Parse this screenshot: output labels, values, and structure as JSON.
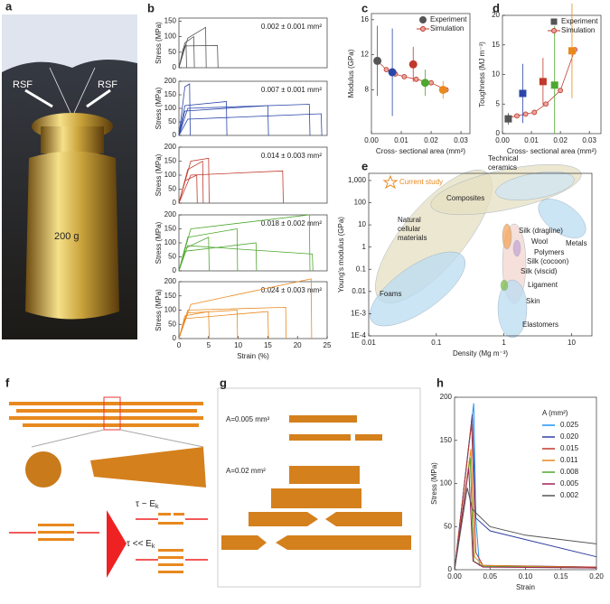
{
  "photo": {
    "panel": "a",
    "labels": [
      "RSF",
      "RSF"
    ],
    "weight": "200 g"
  },
  "diagram_f": {
    "panel": "f",
    "tau1": "τ ~ E",
    "tau1_sub": "k",
    "tau2": "τ << E",
    "tau2_sub": "k"
  },
  "diagram_g": {
    "panel": "g",
    "labels": [
      "A=0.005 mm²",
      "A=0.02 mm²"
    ]
  },
  "chart_data": [
    {
      "type": "line",
      "panel": "b",
      "annotation": "0.002 ± 0.001 mm²",
      "ylabel": "Stress (MPa)",
      "xlim": [
        0,
        25
      ],
      "ylim": [
        0,
        160
      ],
      "yticks": [
        0,
        50,
        100,
        150
      ],
      "series": [
        {
          "color": "#555555",
          "x": [
            0,
            1.5,
            4.5,
            4.6
          ],
          "values": [
            0,
            95,
            130,
            0
          ]
        },
        {
          "color": "#555555",
          "x": [
            0,
            1,
            2.5,
            2.6
          ],
          "values": [
            0,
            80,
            100,
            0
          ]
        },
        {
          "color": "#555555",
          "x": [
            0,
            1,
            6.5,
            6.6
          ],
          "values": [
            0,
            70,
            72,
            0
          ]
        },
        {
          "color": "#555555",
          "x": [
            0,
            0.7,
            1.2,
            1.3
          ],
          "values": [
            0,
            60,
            75,
            0
          ]
        }
      ]
    },
    {
      "type": "line",
      "annotation": "0.007 ± 0.001 mm²",
      "ylabel": "Stress (MPa)",
      "xlim": [
        0,
        25
      ],
      "ylim": [
        0,
        200
      ],
      "yticks": [
        0,
        50,
        100,
        150,
        200
      ],
      "series": [
        {
          "color": "#2a46a8",
          "x": [
            0,
            1,
            1.8,
            1.9
          ],
          "values": [
            0,
            180,
            190,
            0
          ]
        },
        {
          "color": "#2a46a8",
          "x": [
            0,
            1.5,
            22,
            22.1
          ],
          "values": [
            0,
            100,
            115,
            0
          ]
        },
        {
          "color": "#2a46a8",
          "x": [
            0,
            1,
            15,
            15.1
          ],
          "values": [
            0,
            90,
            110,
            0
          ]
        },
        {
          "color": "#2a46a8",
          "x": [
            0,
            1.5,
            24,
            24.1
          ],
          "values": [
            0,
            60,
            80,
            0
          ]
        },
        {
          "color": "#2a46a8",
          "x": [
            0,
            1,
            8,
            8.1
          ],
          "values": [
            0,
            110,
            125,
            0
          ]
        }
      ]
    },
    {
      "type": "line",
      "annotation": "0.014 ± 0.003 mm²",
      "ylabel": "Stress (MPa)",
      "xlim": [
        0,
        25
      ],
      "ylim": [
        0,
        200
      ],
      "yticks": [
        0,
        50,
        100,
        150,
        200
      ],
      "series": [
        {
          "color": "#c0392b",
          "x": [
            0,
            2,
            5,
            5.1
          ],
          "values": [
            0,
            150,
            160,
            0
          ]
        },
        {
          "color": "#c0392b",
          "x": [
            0,
            2,
            17.5,
            17.6
          ],
          "values": [
            0,
            100,
            115,
            0
          ]
        },
        {
          "color": "#c0392b",
          "x": [
            0,
            1.5,
            4,
            4.1
          ],
          "values": [
            0,
            120,
            150,
            0
          ]
        },
        {
          "color": "#c0392b",
          "x": [
            0,
            1,
            3,
            3.1
          ],
          "values": [
            0,
            80,
            100,
            0
          ]
        }
      ]
    },
    {
      "type": "line",
      "annotation": "0.018 ± 0.002 mm²",
      "ylabel": "Stress (MPa)",
      "xlim": [
        0,
        25
      ],
      "ylim": [
        0,
        200
      ],
      "yticks": [
        0,
        50,
        100,
        150,
        200
      ],
      "series": [
        {
          "color": "#4ea72e",
          "x": [
            0,
            2,
            22,
            22.1
          ],
          "values": [
            0,
            150,
            200,
            0
          ]
        },
        {
          "color": "#4ea72e",
          "x": [
            0,
            1.5,
            9.8,
            9.9
          ],
          "values": [
            0,
            120,
            150,
            0
          ]
        },
        {
          "color": "#4ea72e",
          "x": [
            0,
            1.5,
            22.5,
            22.6
          ],
          "values": [
            0,
            90,
            60,
            0
          ]
        },
        {
          "color": "#4ea72e",
          "x": [
            0,
            1,
            5,
            5.1
          ],
          "values": [
            0,
            80,
            120,
            0
          ]
        },
        {
          "color": "#4ea72e",
          "x": [
            0,
            1,
            13,
            13.1
          ],
          "values": [
            0,
            70,
            100,
            0
          ]
        }
      ]
    },
    {
      "type": "line",
      "annotation": "0.024 ± 0.003 mm²",
      "ylabel": "Stress (MPa)",
      "xlabel": "Strain (%)",
      "xlim": [
        0,
        25
      ],
      "ylim": [
        0,
        200
      ],
      "yticks": [
        0,
        50,
        100,
        150,
        200
      ],
      "xticks": [
        0,
        5,
        10,
        15,
        20,
        25
      ],
      "series": [
        {
          "color": "#e8891e",
          "x": [
            0,
            2,
            22.3,
            22.4
          ],
          "values": [
            0,
            120,
            210,
            0
          ]
        },
        {
          "color": "#e8891e",
          "x": [
            0,
            1.5,
            18,
            18.1
          ],
          "values": [
            0,
            100,
            110,
            0
          ]
        },
        {
          "color": "#e8891e",
          "x": [
            0,
            1.5,
            9.8,
            9.9
          ],
          "values": [
            0,
            90,
            100,
            0
          ]
        },
        {
          "color": "#e8891e",
          "x": [
            0,
            1,
            5,
            5.1
          ],
          "values": [
            0,
            80,
            95,
            0
          ]
        },
        {
          "color": "#e8891e",
          "x": [
            0,
            1,
            15,
            15.1
          ],
          "values": [
            0,
            70,
            95,
            0
          ]
        }
      ]
    },
    {
      "type": "scatter",
      "panel": "c",
      "ylabel": "Modulus (GPa)",
      "xlabel": "Cross- sectional area (mm²)",
      "xlim": [
        0,
        0.033
      ],
      "ylim": [
        3,
        16.7
      ],
      "xticks": [
        {
          "value": 0,
          "label": "0.00"
        },
        0.01,
        0.02,
        0.03
      ],
      "yticks": [
        8,
        12,
        16
      ],
      "marker": "circle",
      "series": [
        {
          "name": "Experiment",
          "color": "#555555",
          "colors": [
            "#555555",
            "#2a46a8",
            "#c0392b",
            "#4ea72e",
            "#e8891e"
          ],
          "x": [
            0.002,
            0.007,
            0.014,
            0.018,
            0.024
          ],
          "values": [
            11.3,
            10,
            10.9,
            8.8,
            8
          ],
          "errors": [
            4,
            5,
            2,
            1.5,
            1
          ]
        },
        {
          "name": "Simulation",
          "color": "#c0392b",
          "x": [
            0.002,
            0.005,
            0.008,
            0.011,
            0.015,
            0.02,
            0.025
          ],
          "values": [
            11.3,
            10.3,
            9.8,
            9.5,
            9.2,
            8.8,
            8
          ]
        }
      ]
    },
    {
      "type": "scatter",
      "panel": "d",
      "ylabel": "Toughness (MJ m⁻³)",
      "xlabel": "Cross- sectional area (mm²)",
      "xlim": [
        0,
        0.034
      ],
      "ylim": [
        0,
        20
      ],
      "xticks": [
        {
          "value": 0,
          "label": "0.00"
        },
        0.01,
        0.02,
        0.03
      ],
      "yticks": [
        0,
        5,
        10,
        15,
        20
      ],
      "marker": "square",
      "series": [
        {
          "name": "Experiment",
          "color": "#555555",
          "colors": [
            "#555555",
            "#2a46a8",
            "#c0392b",
            "#4ea72e",
            "#e8891e"
          ],
          "x": [
            0.002,
            0.007,
            0.014,
            0.018,
            0.024
          ],
          "values": [
            2.5,
            6.8,
            8.8,
            8.2,
            14
          ],
          "errors": [
            1,
            5,
            4,
            10,
            8
          ]
        },
        {
          "name": "Simulation",
          "color": "#c0392b",
          "x": [
            0.002,
            0.005,
            0.008,
            0.011,
            0.015,
            0.02,
            0.025
          ],
          "values": [
            2.7,
            3,
            3.3,
            3.6,
            5,
            7.3,
            14.2
          ]
        }
      ]
    },
    {
      "type": "ashby",
      "panel": "e",
      "ylabel": "Young's modulus (GPa)",
      "xlabel": "Density (Mg m⁻³)",
      "xscale": "log",
      "yscale": "log",
      "xlim": [
        0.01,
        20
      ],
      "ylim": [
        0.0001,
        2100
      ],
      "xticks": [
        0.01,
        0.1,
        1,
        10
      ],
      "yticks": [
        {
          "value": 1000,
          "label": "1,000"
        },
        100,
        10,
        1,
        0.1,
        0.01,
        {
          "value": 0.001,
          "label": "1E-3"
        },
        {
          "value": 0.0001,
          "label": "1E-4"
        }
      ],
      "annotations": [
        {
          "lines": [
            "Current study"
          ]
        },
        {
          "lines": [
            "Technical",
            "ceramics"
          ]
        },
        {
          "lines": [
            "Composites"
          ]
        },
        {
          "lines": [
            "Natural",
            "cellular",
            "materials"
          ]
        },
        {
          "lines": [
            "Silk (dragline)"
          ]
        },
        {
          "lines": [
            "Wool"
          ]
        },
        {
          "lines": [
            "Polymers"
          ]
        },
        {
          "lines": [
            "Silk (cocoon)"
          ]
        },
        {
          "lines": [
            "Silk (viscid)"
          ]
        },
        {
          "lines": [
            "Metals"
          ]
        },
        {
          "lines": [
            "Foams"
          ]
        },
        {
          "lines": [
            "Ligament"
          ]
        },
        {
          "lines": [
            "Skin"
          ]
        },
        {
          "lines": [
            "Elastomers"
          ]
        }
      ]
    },
    {
      "type": "line",
      "panel": "h",
      "ylabel": "Stress (MPa)",
      "xlabel": "Strain",
      "legend_title": "A (mm²)",
      "xlim": [
        0,
        0.2
      ],
      "ylim": [
        0,
        200
      ],
      "yticks": [
        0,
        50,
        100,
        150,
        200
      ],
      "xticks": [
        {
          "value": 0,
          "label": "0.00"
        },
        0.05,
        {
          "value": 0.1,
          "label": "0.10"
        },
        0.15,
        {
          "value": 0.2,
          "label": "0.20"
        }
      ],
      "series": [
        {
          "name": "0.025",
          "color": "#2196f3",
          "x": [
            0,
            0.027,
            0.03,
            0.035,
            0.2
          ],
          "values": [
            0,
            193,
            60,
            5,
            3
          ]
        },
        {
          "name": "0.020",
          "color": "#3040a0",
          "x": [
            0,
            0.025,
            0.03,
            0.05,
            0.1,
            0.2
          ],
          "values": [
            0,
            180,
            60,
            45,
            35,
            15
          ]
        },
        {
          "name": "0.015",
          "color": "#c0392b",
          "x": [
            0,
            0.024,
            0.03,
            0.04,
            0.2
          ],
          "values": [
            0,
            170,
            20,
            5,
            3
          ]
        },
        {
          "name": "0.011",
          "color": "#e8891e",
          "x": [
            0,
            0.023,
            0.028,
            0.04,
            0.2
          ],
          "values": [
            0,
            140,
            15,
            5,
            2
          ]
        },
        {
          "name": "0.008",
          "color": "#4ea72e",
          "x": [
            0,
            0.022,
            0.027,
            0.04,
            0.2
          ],
          "values": [
            0,
            130,
            10,
            4,
            2
          ]
        },
        {
          "name": "0.005",
          "color": "#a0205a",
          "x": [
            0,
            0.02,
            0.026,
            0.04,
            0.2
          ],
          "values": [
            0,
            118,
            10,
            3,
            2
          ]
        },
        {
          "name": "0.002",
          "color": "#555555",
          "x": [
            0,
            0.018,
            0.025,
            0.05,
            0.1,
            0.2
          ],
          "values": [
            0,
            95,
            70,
            50,
            40,
            30
          ]
        }
      ]
    }
  ]
}
